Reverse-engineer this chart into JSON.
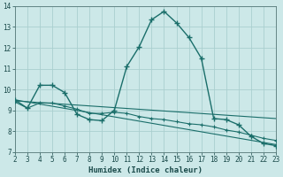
{
  "xlabel": "Humidex (Indice chaleur)",
  "bg_color": "#cce8e8",
  "grid_color": "#aacfcf",
  "line_color": "#1a6e6a",
  "xlim": [
    2,
    23
  ],
  "ylim": [
    7,
    14
  ],
  "xticks": [
    2,
    3,
    4,
    5,
    6,
    7,
    8,
    9,
    10,
    11,
    12,
    13,
    14,
    15,
    16,
    17,
    18,
    19,
    20,
    21,
    22,
    23
  ],
  "yticks": [
    7,
    8,
    9,
    10,
    11,
    12,
    13,
    14
  ],
  "series1_x": [
    2,
    3,
    4,
    5,
    6,
    7,
    8,
    9,
    10,
    11,
    12,
    13,
    14,
    15,
    16,
    17,
    18,
    19,
    20,
    21,
    22,
    23
  ],
  "series1_y": [
    9.5,
    9.1,
    10.2,
    10.2,
    9.85,
    8.8,
    8.55,
    8.5,
    9.0,
    11.1,
    12.05,
    13.35,
    13.75,
    13.2,
    12.5,
    11.5,
    8.6,
    8.55,
    8.3,
    7.75,
    7.4,
    7.3
  ],
  "series2_x": [
    2,
    3,
    4,
    5,
    6,
    7,
    8,
    9,
    10,
    11,
    12,
    13,
    14,
    15,
    16,
    17,
    18,
    19,
    20,
    21,
    22,
    23
  ],
  "series2_y": [
    9.4,
    9.1,
    9.35,
    9.35,
    9.2,
    9.05,
    8.85,
    8.85,
    8.9,
    8.85,
    8.7,
    8.6,
    8.55,
    8.45,
    8.35,
    8.3,
    8.2,
    8.05,
    7.95,
    7.8,
    7.65,
    7.55
  ],
  "series3_x": [
    2,
    23
  ],
  "series3_y": [
    9.5,
    7.35
  ],
  "series4_x": [
    2,
    23
  ],
  "series4_y": [
    9.45,
    8.6
  ]
}
